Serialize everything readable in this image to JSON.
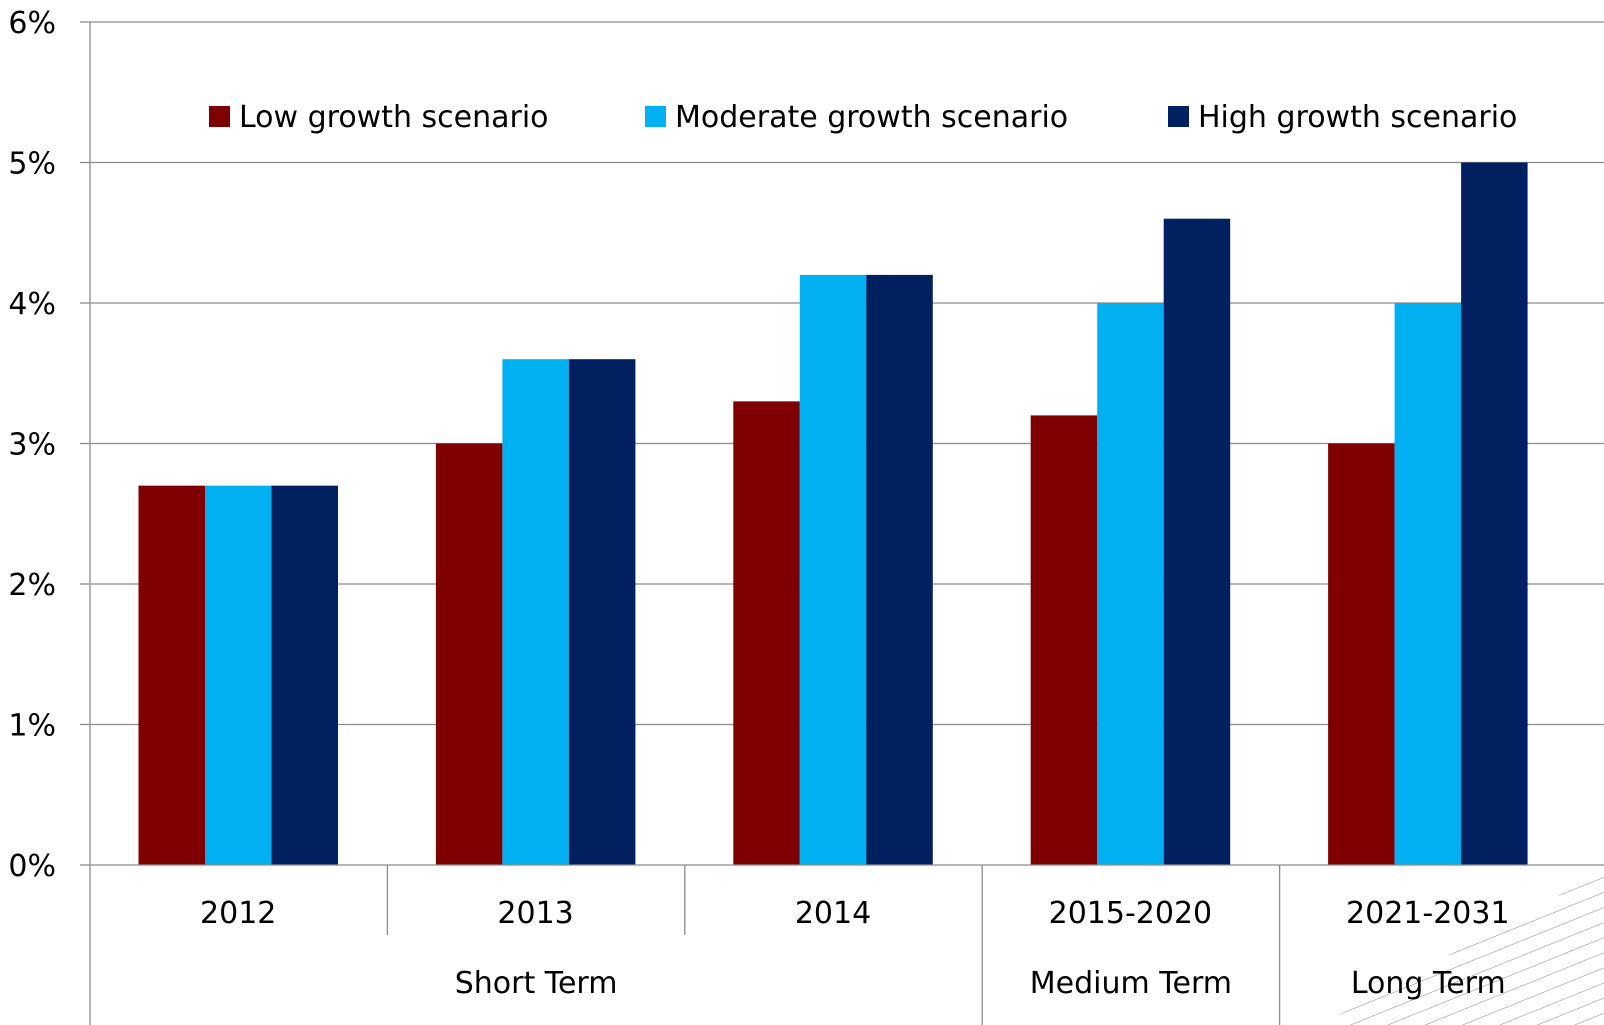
{
  "chart_data": {
    "type": "bar",
    "categories": [
      "2012",
      "2013",
      "2014",
      "2015-2020",
      "2021-2031"
    ],
    "groups": [
      {
        "label": "Short Term",
        "categories": [
          "2012",
          "2013",
          "2014"
        ]
      },
      {
        "label": "Medium Term",
        "categories": [
          "2015-2020"
        ]
      },
      {
        "label": "Long Term",
        "categories": [
          "2021-2031"
        ]
      }
    ],
    "series": [
      {
        "name": "Low growth scenario",
        "color": "#7f0000",
        "values": [
          2.7,
          3.0,
          3.3,
          3.2,
          3.0
        ]
      },
      {
        "name": "Moderate growth scenario",
        "color": "#00b0f0",
        "values": [
          2.7,
          3.6,
          4.2,
          4.0,
          4.0
        ]
      },
      {
        "name": "High growth scenario",
        "color": "#002060",
        "values": [
          2.7,
          3.6,
          4.2,
          4.6,
          5.0
        ]
      }
    ],
    "yticks": [
      "0%",
      "1%",
      "2%",
      "3%",
      "4%",
      "5%",
      "6%"
    ],
    "ylim": [
      0,
      6
    ],
    "unit": "%",
    "grid": true,
    "legend_position": "top",
    "title": "",
    "xlabel": "",
    "ylabel": ""
  }
}
